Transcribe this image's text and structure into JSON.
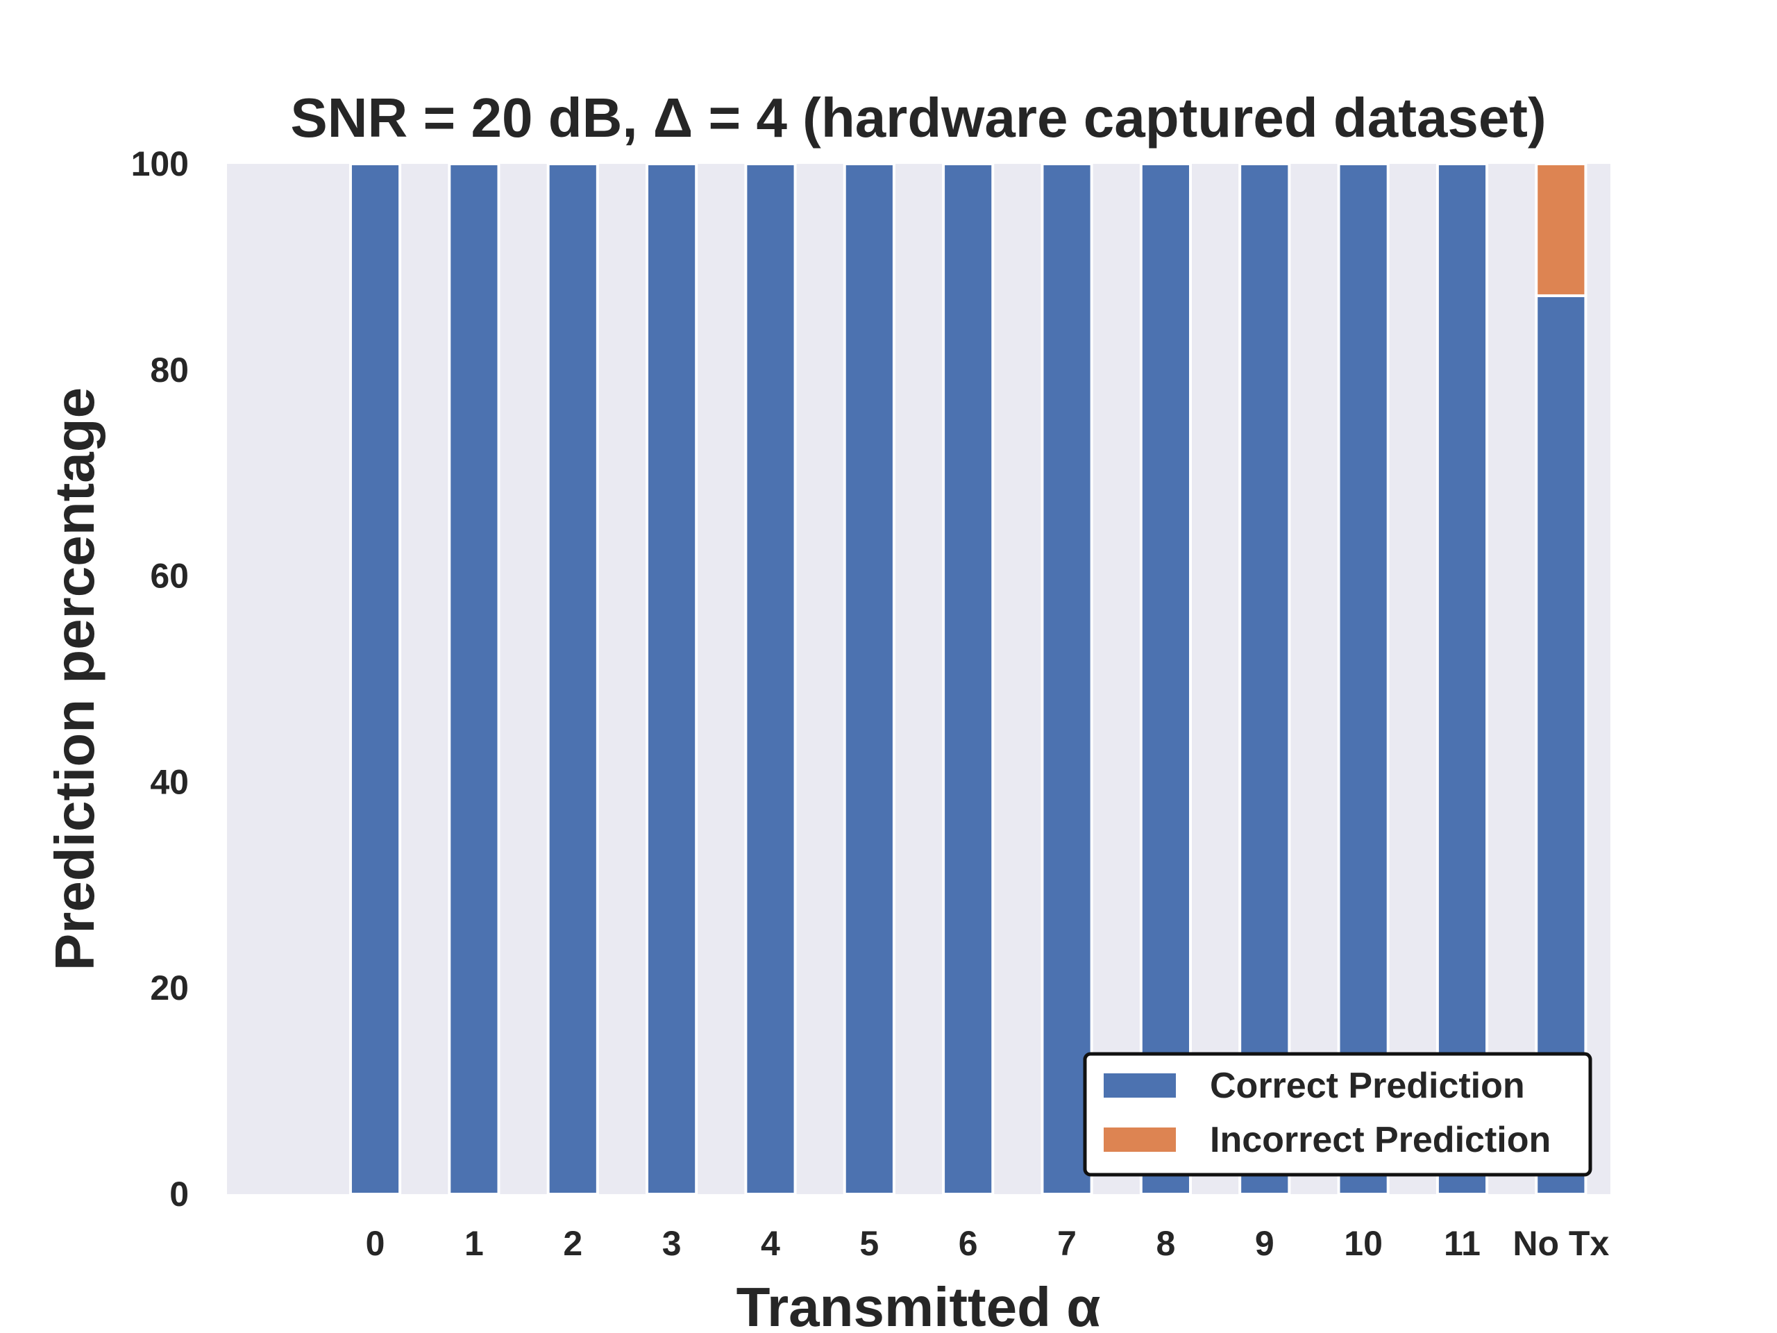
{
  "chart_data": {
    "type": "bar",
    "stacked": true,
    "title": "SNR = 20 dB, Δ = 4 (hardware captured dataset)",
    "xlabel": "Transmitted α",
    "ylabel": "Prediction percentage",
    "categories": [
      "0",
      "1",
      "2",
      "3",
      "4",
      "5",
      "6",
      "7",
      "8",
      "9",
      "10",
      "11",
      "No Tx"
    ],
    "series": [
      {
        "name": "Correct Prediction",
        "color": "#4c72b0",
        "values": [
          100,
          100,
          100,
          100,
          100,
          100,
          100,
          100,
          100,
          100,
          100,
          100,
          87.2
        ]
      },
      {
        "name": "Incorrect Prediction",
        "color": "#dd8452",
        "values": [
          0,
          0,
          0,
          0,
          0,
          0,
          0,
          0,
          0,
          0,
          0,
          0,
          12.8
        ]
      }
    ],
    "ylim": [
      0,
      100
    ],
    "yticks": [
      "0",
      "20",
      "40",
      "60",
      "80",
      "100"
    ],
    "xlim": [
      -1.5,
      12.5
    ],
    "grid": false,
    "plot_background": "#eaeaf2",
    "legend_position": "lower-right"
  }
}
